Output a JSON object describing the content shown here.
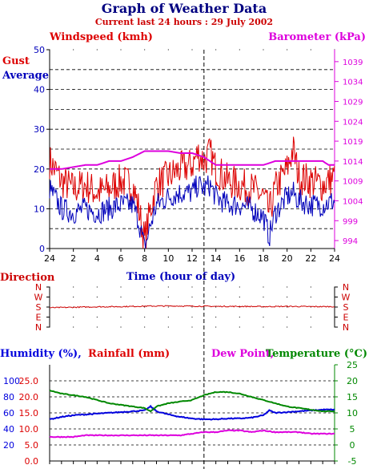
{
  "colors": {
    "title": "#000080",
    "subtitle": "#cc0000",
    "gust": "#dd0000",
    "average": "#0000bb",
    "barometer": "#dd00dd",
    "direction": "#cc0000",
    "humidity": "#0000dd",
    "rainfall": "#dd0000",
    "dew_point": "#dd00dd",
    "temperature": "#008800",
    "axis": "#000000"
  },
  "header": {
    "title": "Graph of Weather Data",
    "subtitle": "Current last 24 hours : 29 July 2002"
  },
  "chart_data": [
    {
      "type": "line",
      "xlabel": "Time (hour of day)",
      "x_tick_labels": [
        "24",
        "2",
        "4",
        "6",
        "8",
        "10",
        "12",
        "14",
        "16",
        "18",
        "20",
        "22",
        "24"
      ],
      "x_marker_hour": 13,
      "ylabel_left": "Windspeed (kmh)",
      "ylabel_right": "Barometer (kPa)",
      "ylim_left": [
        0,
        50
      ],
      "ylim_right": [
        992,
        1042
      ],
      "left_ticks": [
        "0",
        "10",
        "20",
        "30",
        "40",
        "50"
      ],
      "right_ticks": [
        "994",
        "999",
        "1004",
        "1009",
        "1014",
        "1019",
        "1024",
        "1029",
        "1034",
        "1039"
      ],
      "grid": true,
      "series": [
        {
          "name": "Gust",
          "axis": "left",
          "x": [
            0,
            1,
            2,
            3,
            4,
            5,
            6,
            7,
            7.5,
            8,
            8.5,
            9,
            10,
            11,
            12,
            12.5,
            13,
            13.5,
            14,
            15,
            16,
            17,
            18,
            18.5,
            19,
            20,
            20.5,
            21,
            22,
            23,
            24
          ],
          "y": [
            22,
            17,
            15,
            16,
            14,
            15,
            17,
            16,
            10,
            2,
            10,
            16,
            18,
            20,
            21,
            24,
            22,
            24,
            20,
            17,
            16,
            15,
            13,
            9,
            15,
            20,
            25,
            18,
            17,
            16,
            18
          ]
        },
        {
          "name": "Average",
          "axis": "left",
          "x": [
            0,
            1,
            2,
            3,
            4,
            5,
            6,
            7,
            7.5,
            8,
            8.5,
            9,
            10,
            11,
            12,
            12.5,
            13,
            13.5,
            14,
            15,
            16,
            17,
            18,
            18.5,
            19,
            20,
            20.5,
            21,
            22,
            23,
            24
          ],
          "y": [
            15,
            10,
            9,
            10,
            9,
            10,
            11,
            11,
            7,
            0,
            6,
            11,
            13,
            14,
            14,
            16,
            15,
            16,
            13,
            11,
            11,
            10,
            8,
            3,
            9,
            13,
            14,
            12,
            11,
            11,
            12
          ]
        },
        {
          "name": "Barometer",
          "axis": "right",
          "x": [
            0,
            1,
            2,
            3,
            4,
            5,
            6,
            7,
            8,
            9,
            10,
            11,
            12,
            13,
            14,
            15,
            16,
            17,
            18,
            19,
            20,
            21,
            22,
            23,
            23.5,
            24
          ],
          "y": [
            1012,
            1012,
            1012.5,
            1013,
            1013,
            1014,
            1014,
            1015,
            1016.5,
            1016.5,
            1016.5,
            1016,
            1016,
            1015,
            1013,
            1013,
            1013,
            1013,
            1013,
            1014,
            1014,
            1014,
            1014,
            1014,
            1013,
            1013
          ]
        }
      ]
    },
    {
      "type": "line",
      "ylabel": "Direction",
      "y_tick_labels": [
        "N",
        "W",
        "S",
        "E",
        "N"
      ],
      "series": [
        {
          "name": "Direction",
          "x": [
            0,
            2,
            4,
            6,
            8,
            10,
            12,
            14,
            16,
            18,
            20,
            22,
            24
          ],
          "y": [
            174,
            178,
            182,
            184,
            188,
            190,
            188,
            186,
            186,
            184,
            186,
            184,
            184
          ]
        }
      ]
    },
    {
      "type": "line",
      "ylabel_left_1": "Humidity (%),",
      "ylabel_left_2": "Rainfall (mm)",
      "ylabel_right_1": "Dew Point,",
      "ylabel_right_2": "Temperature (°C)",
      "humidity_ticks": [
        "20",
        "40",
        "60",
        "80",
        "100"
      ],
      "rainfall_ticks": [
        "0.0",
        "5.0",
        "10.0",
        "15.0",
        "20.0",
        "25.0"
      ],
      "temperature_ticks": [
        "-5",
        "0",
        "5",
        "10",
        "15",
        "20",
        "25"
      ],
      "ylim_rainfall": [
        0,
        30
      ],
      "ylim_temperature": [
        -5,
        25
      ],
      "series": [
        {
          "name": "Humidity",
          "axis": "humidity",
          "x": [
            0,
            1,
            2,
            3,
            4,
            5,
            6,
            7,
            8,
            8.5,
            9,
            10,
            11,
            12,
            13,
            14,
            15,
            16,
            17,
            18,
            18.5,
            19,
            20,
            21,
            22,
            23,
            24
          ],
          "y": [
            52,
            55,
            57,
            58,
            59,
            60,
            61,
            62,
            63,
            68,
            62,
            58,
            55,
            53,
            52,
            52,
            53,
            53,
            54,
            57,
            63,
            60,
            61,
            62,
            63,
            64,
            64
          ]
        },
        {
          "name": "Temperature",
          "axis": "temperature",
          "x": [
            0,
            1,
            2,
            3,
            4,
            5,
            6,
            7,
            8,
            8.5,
            9,
            10,
            11,
            12,
            13,
            14,
            15,
            16,
            17,
            18,
            19,
            20,
            21,
            22,
            23,
            24
          ],
          "y": [
            17,
            16,
            15.5,
            15,
            14,
            13,
            12.5,
            12,
            11.5,
            10.5,
            12,
            13,
            13.5,
            14,
            15.5,
            16.5,
            16.5,
            16,
            15,
            14,
            13,
            12,
            11.5,
            11,
            10.5,
            10.5
          ]
        },
        {
          "name": "Dew Point",
          "axis": "temperature",
          "x": [
            0,
            1,
            2,
            3,
            4,
            5,
            6,
            7,
            8,
            9,
            10,
            11,
            12,
            13,
            14,
            15,
            16,
            17,
            18,
            19,
            20,
            21,
            22,
            23,
            24
          ],
          "y": [
            2.5,
            2.5,
            2.5,
            3,
            3,
            3,
            3,
            3,
            3,
            3,
            3,
            3,
            3.5,
            4,
            4,
            4.5,
            4.5,
            4,
            4.5,
            4,
            4,
            4,
            3.5,
            3.5,
            3.5
          ]
        }
      ]
    }
  ]
}
